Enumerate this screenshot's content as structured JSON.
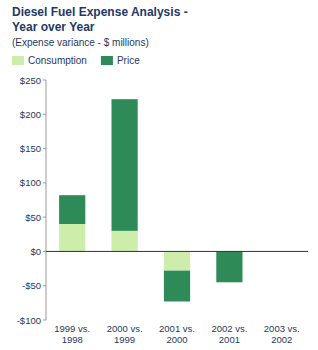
{
  "chart_data": {
    "type": "bar",
    "title": "Diesel Fuel Expense Analysis -\nYear over Year",
    "subtitle": "(Expense variance - $ millions)",
    "categories": [
      "1999 vs.\n1998",
      "2000 vs.\n1999",
      "2001 vs.\n2000",
      "2002 vs.\n2001",
      "2003 vs.\n2002"
    ],
    "series": [
      {
        "name": "Consumption",
        "color": "#cceeaa",
        "values": [
          40,
          30,
          -28,
          0,
          0
        ]
      },
      {
        "name": "Price",
        "color": "#2e8b57",
        "values": [
          42,
          192,
          -45,
          -45,
          0
        ]
      }
    ],
    "stacked": true,
    "ylim": [
      -100,
      250
    ],
    "yticks": [
      {
        "value": -100,
        "label": "-$100"
      },
      {
        "value": -50,
        "label": "-$50"
      },
      {
        "value": 0,
        "label": "$0"
      },
      {
        "value": 50,
        "label": "$50"
      },
      {
        "value": 100,
        "label": "$100"
      },
      {
        "value": 150,
        "label": "$150"
      },
      {
        "value": 200,
        "label": "$200"
      },
      {
        "value": 250,
        "label": "$250"
      }
    ],
    "grid": false,
    "legend": "top"
  }
}
